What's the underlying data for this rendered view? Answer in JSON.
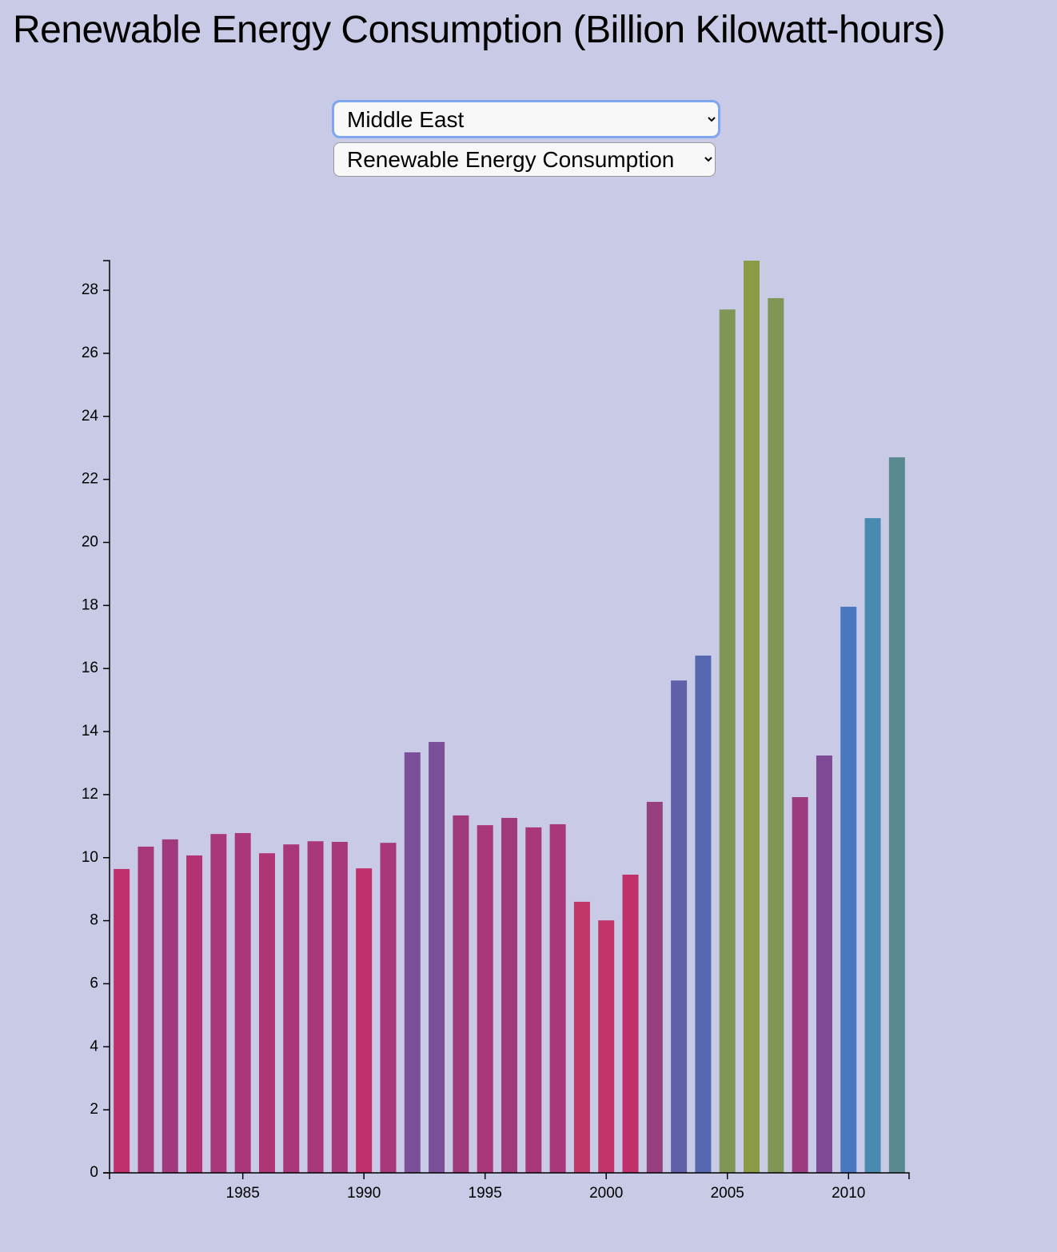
{
  "header": {
    "title": "Renewable Energy Consumption (Billion Kilowatt-hours)"
  },
  "controls": {
    "region": "Middle East",
    "metric": "Renewable Energy Consumption"
  },
  "chart_data": {
    "type": "bar",
    "x": [
      1980,
      1981,
      1982,
      1983,
      1984,
      1985,
      1986,
      1987,
      1988,
      1989,
      1990,
      1991,
      1992,
      1993,
      1994,
      1995,
      1996,
      1997,
      1998,
      1999,
      2000,
      2001,
      2002,
      2003,
      2004,
      2005,
      2006,
      2007,
      2008,
      2009,
      2010,
      2011,
      2012
    ],
    "values": [
      9.64,
      10.35,
      10.58,
      10.07,
      10.75,
      10.78,
      10.14,
      10.42,
      10.52,
      10.5,
      9.66,
      10.47,
      13.34,
      13.67,
      11.34,
      11.03,
      11.26,
      10.96,
      11.06,
      8.6,
      8.01,
      9.46,
      11.77,
      15.62,
      16.41,
      27.39,
      28.94,
      27.75,
      11.92,
      13.24,
      17.96,
      20.77,
      22.7
    ],
    "colors": [
      "#c0306a",
      "#a8387a",
      "#a03a7c",
      "#b33372",
      "#a8387a",
      "#a8387a",
      "#b03574",
      "#a8387a",
      "#a8387a",
      "#a8387a",
      "#c0306a",
      "#a8387a",
      "#7a5098",
      "#7a5098",
      "#a0397c",
      "#a8387a",
      "#a0397c",
      "#a8387a",
      "#a8387a",
      "#c03868",
      "#c0346a",
      "#c0306a",
      "#98407f",
      "#6060a8",
      "#5568b0",
      "#7f9657",
      "#8a9a45",
      "#7f9657",
      "#9a3c7e",
      "#7f4b96",
      "#4a78c0",
      "#4a8ab0",
      "#5a8a90"
    ],
    "xlim": [
      1979.5,
      2012.5
    ],
    "xticks": [
      1985,
      1990,
      1995,
      2000,
      2005,
      2010
    ],
    "ylim": [
      0,
      28.94
    ],
    "yticks": [
      0,
      2,
      4,
      6,
      8,
      10,
      12,
      14,
      16,
      18,
      20,
      22,
      24,
      26,
      28
    ]
  }
}
